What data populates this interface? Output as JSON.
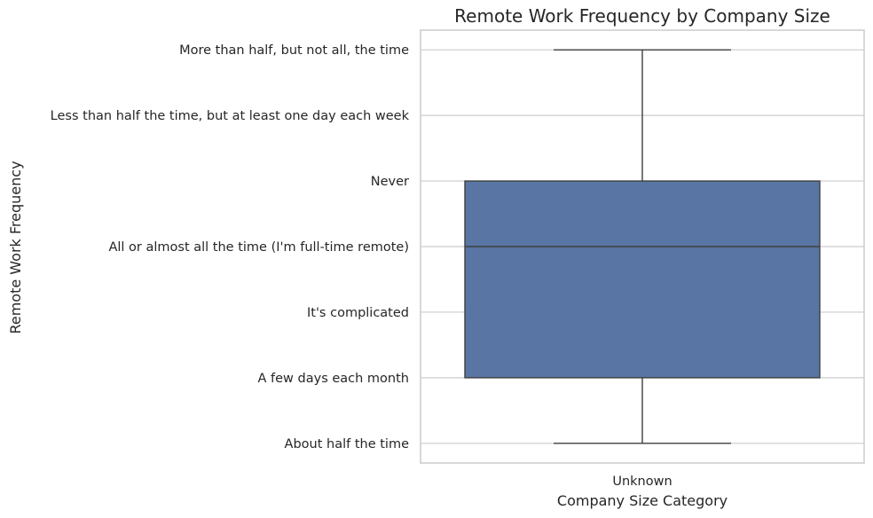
{
  "chart_data": {
    "type": "box",
    "title": "Remote Work Frequency by Company Size",
    "xlabel": "Company Size Category",
    "ylabel": "Remote Work Frequency",
    "categories": [
      "Unknown"
    ],
    "y_categories": [
      "About half the time",
      "A few days each month",
      "It's complicated",
      "All or almost all the time (I'm full-time remote)",
      "Never",
      "Less than half the time, but at least one day each week",
      "More than half, but not all, the time"
    ],
    "boxes": [
      {
        "category": "Unknown",
        "whisker_low": 0,
        "q1": 1,
        "median": 3,
        "q3": 4,
        "whisker_high": 6
      }
    ],
    "ylim": [
      -0.3,
      6.3
    ],
    "grid": true,
    "box_color": "#5875a4",
    "line_color": "#3f3f3f",
    "grid_color": "#cccccc"
  }
}
